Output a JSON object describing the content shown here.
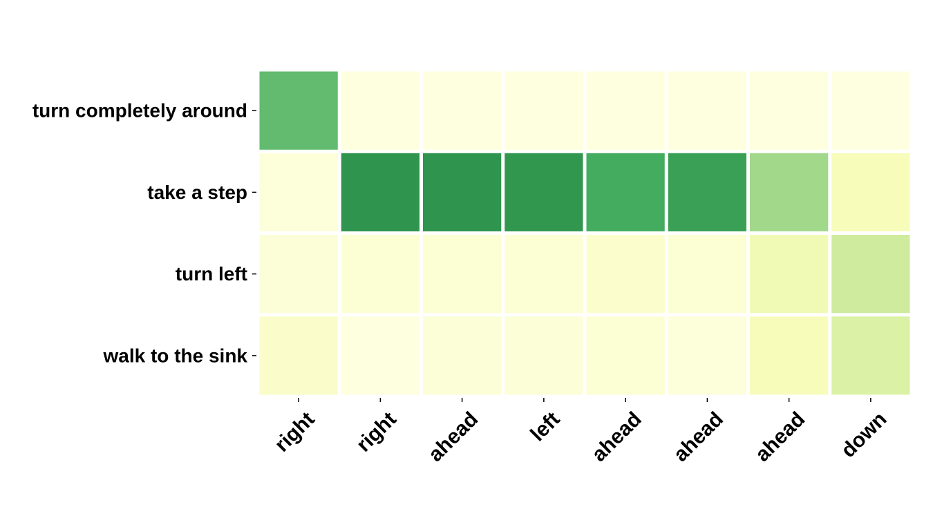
{
  "chart_data": {
    "type": "heatmap",
    "title": "",
    "xlabel": "",
    "ylabel": "",
    "x_categories": [
      "right",
      "right",
      "ahead",
      "left",
      "ahead",
      "ahead",
      "ahead",
      "down"
    ],
    "y_categories": [
      "turn completely around",
      "take a step",
      "turn left",
      "walk to the sink"
    ],
    "values": [
      [
        0.55,
        0.02,
        0.02,
        0.02,
        0.02,
        0.02,
        0.02,
        0.01
      ],
      [
        0.03,
        0.7,
        0.7,
        0.69,
        0.62,
        0.66,
        0.4,
        0.12
      ],
      [
        0.04,
        0.05,
        0.05,
        0.05,
        0.07,
        0.05,
        0.15,
        0.28
      ],
      [
        0.08,
        0.02,
        0.04,
        0.04,
        0.05,
        0.03,
        0.12,
        0.24
      ]
    ],
    "colormap": "YlGn",
    "vmin": 0,
    "vmax": 1,
    "grid": false,
    "legend": "none"
  }
}
